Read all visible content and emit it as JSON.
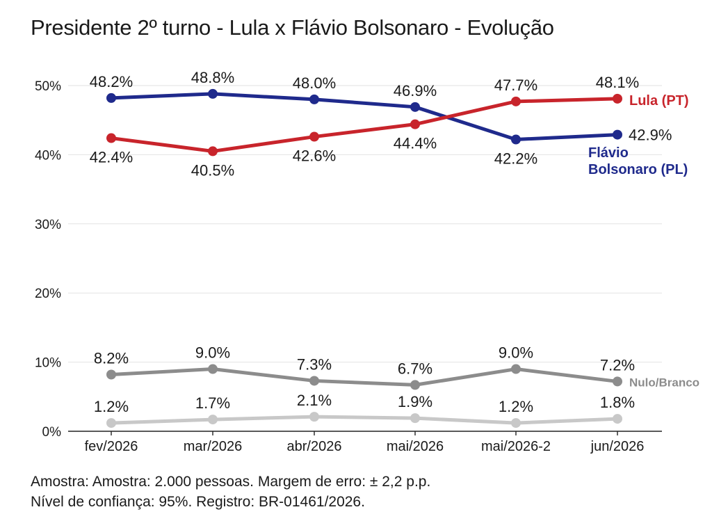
{
  "chart_data": {
    "type": "line",
    "title": "Presidente 2º turno - Lula x Flávio Bolsonaro - Evolução",
    "categories": [
      "fev/2026",
      "mar/2026",
      "abr/2026",
      "mai/2026",
      "mai/2026-2",
      "jun/2026"
    ],
    "ylim": [
      0,
      50
    ],
    "yticks": [
      0,
      10,
      20,
      30,
      40,
      50
    ],
    "ytick_labels": [
      "0%",
      "10%",
      "20%",
      "30%",
      "40%",
      "50%"
    ],
    "grid": true,
    "legend": "inline-right",
    "series": [
      {
        "key": "flavio",
        "name_lines": [
          "Flávio",
          "Bolsonaro (PL)"
        ],
        "color": "#1f2a8c",
        "values": [
          48.2,
          48.8,
          48.0,
          46.9,
          42.2,
          42.9
        ],
        "labels": [
          "48.2%",
          "48.8%",
          "48.0%",
          "46.9%",
          "42.2%",
          "42.9%"
        ]
      },
      {
        "key": "lula",
        "name_lines": [
          "Lula (PT)"
        ],
        "color": "#c8242b",
        "values": [
          42.4,
          40.5,
          42.6,
          44.4,
          47.7,
          48.1
        ],
        "labels": [
          "42.4%",
          "40.5%",
          "42.6%",
          "44.4%",
          "47.7%",
          "48.1%"
        ]
      },
      {
        "key": "nulo",
        "name_lines": [
          "Nulo/Branco"
        ],
        "color": "#8c8c8c",
        "values": [
          8.2,
          9.0,
          7.3,
          6.7,
          9.0,
          7.2
        ],
        "labels": [
          "8.2%",
          "9.0%",
          "7.3%",
          "6.7%",
          "9.0%",
          "7.2%"
        ]
      },
      {
        "key": "other",
        "name_lines": [],
        "color": "#c8c8c8",
        "values": [
          1.2,
          1.7,
          2.1,
          1.9,
          1.2,
          1.8
        ],
        "labels": [
          "1.2%",
          "1.7%",
          "2.1%",
          "1.9%",
          "1.2%",
          "1.8%"
        ]
      }
    ]
  },
  "footnote": {
    "line1": "Amostra: Amostra: 2.000 pessoas. Margem de erro: ± 2,2 p.p.",
    "line2": "Nível de confiança: 95%. Registro: BR-01461/2026."
  }
}
